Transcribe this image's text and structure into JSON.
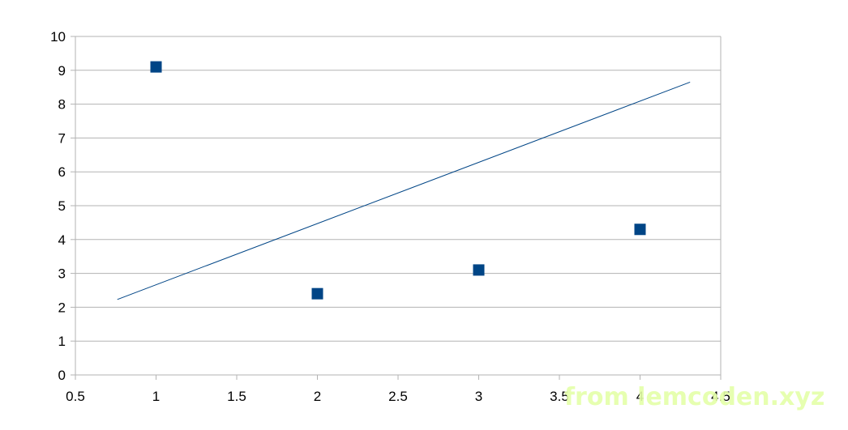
{
  "chart_data": {
    "type": "scatter",
    "title": "",
    "xlabel": "",
    "ylabel": "",
    "xlim": [
      0.5,
      4.5
    ],
    "ylim": [
      0,
      10
    ],
    "x_ticks": [
      "0.5",
      "1",
      "1.5",
      "2",
      "2.5",
      "3",
      "3.5",
      "4",
      "4.5"
    ],
    "y_ticks": [
      "0",
      "1",
      "2",
      "3",
      "4",
      "5",
      "6",
      "7",
      "8",
      "9",
      "10"
    ],
    "grid": {
      "horizontal": true,
      "vertical": false
    },
    "legend": "none",
    "series": [
      {
        "type": "scatter",
        "marker": "square",
        "color": "#004586",
        "points": [
          {
            "x": 1,
            "y": 9.1
          },
          {
            "x": 2,
            "y": 2.4
          },
          {
            "x": 3,
            "y": 3.1
          },
          {
            "x": 4,
            "y": 4.3
          }
        ]
      },
      {
        "type": "line",
        "color": "#004586",
        "points": [
          {
            "x": 0.76,
            "y": 2.23
          },
          {
            "x": 4.31,
            "y": 8.65
          }
        ]
      }
    ]
  },
  "watermark": {
    "text": "from lemcoden.xyz",
    "color": "#e4ffa8"
  }
}
